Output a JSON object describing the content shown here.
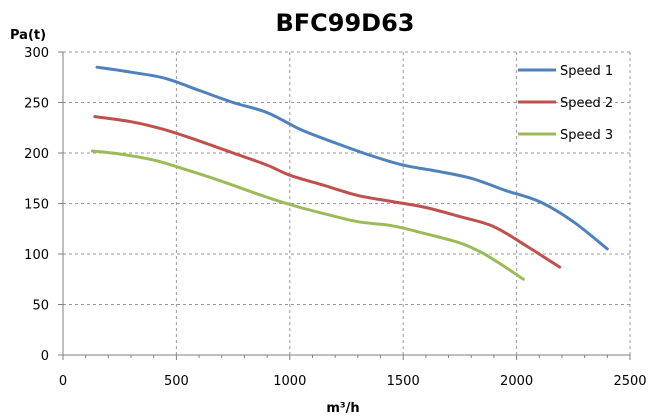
{
  "chart_data": {
    "type": "line",
    "title": "BFC99D63",
    "xlabel": "m³/h",
    "ylabel": "Pa(t)",
    "xlim": [
      0,
      2500
    ],
    "ylim": [
      0,
      300
    ],
    "x_ticks": [
      0,
      500,
      1000,
      1500,
      2000,
      2500
    ],
    "y_ticks": [
      0,
      50,
      100,
      150,
      200,
      250,
      300
    ],
    "grid": true,
    "legend_position": "top-right",
    "series": [
      {
        "name": "Speed 1",
        "color": "#4f81bd",
        "points": [
          [
            150,
            285
          ],
          [
            300,
            280
          ],
          [
            450,
            274
          ],
          [
            600,
            262
          ],
          [
            750,
            250
          ],
          [
            900,
            240
          ],
          [
            1050,
            223
          ],
          [
            1200,
            210
          ],
          [
            1350,
            198
          ],
          [
            1500,
            188
          ],
          [
            1650,
            182
          ],
          [
            1800,
            175
          ],
          [
            1950,
            163
          ],
          [
            2100,
            152
          ],
          [
            2250,
            132
          ],
          [
            2400,
            105
          ]
        ]
      },
      {
        "name": "Speed 2",
        "color": "#c0504d",
        "points": [
          [
            140,
            236
          ],
          [
            300,
            231
          ],
          [
            450,
            223
          ],
          [
            600,
            212
          ],
          [
            750,
            200
          ],
          [
            900,
            188
          ],
          [
            1000,
            178
          ],
          [
            1150,
            168
          ],
          [
            1300,
            158
          ],
          [
            1450,
            152
          ],
          [
            1600,
            146
          ],
          [
            1750,
            137
          ],
          [
            1900,
            127
          ],
          [
            2050,
            107
          ],
          [
            2190,
            87
          ]
        ]
      },
      {
        "name": "Speed 3",
        "color": "#9bbb59",
        "points": [
          [
            130,
            202
          ],
          [
            250,
            199
          ],
          [
            400,
            193
          ],
          [
            550,
            183
          ],
          [
            700,
            172
          ],
          [
            850,
            160
          ],
          [
            1000,
            149
          ],
          [
            1150,
            140
          ],
          [
            1300,
            132
          ],
          [
            1450,
            128
          ],
          [
            1600,
            120
          ],
          [
            1750,
            111
          ],
          [
            1850,
            101
          ],
          [
            1950,
            87
          ],
          [
            2030,
            75
          ]
        ]
      }
    ]
  }
}
